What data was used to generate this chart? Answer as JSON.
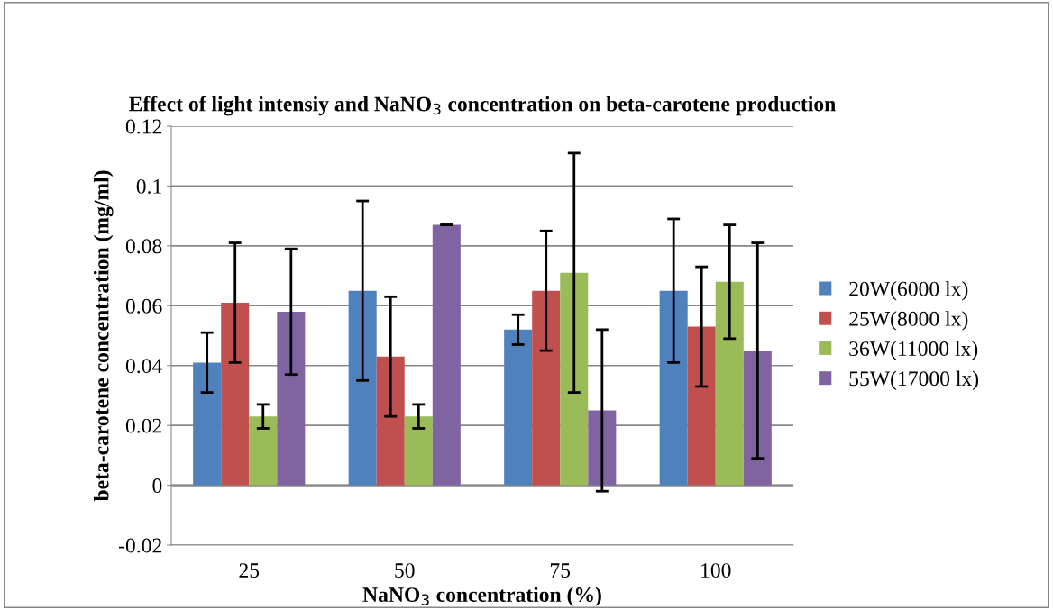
{
  "chart_data": {
    "type": "bar",
    "title": "Effect of light intensiy and NaNO$_{3}$ concentration on beta-carotene production",
    "xlabel": "NaNO$_{3}$ concentration (%)",
    "ylabel": "beta-carotene concentration (mg/ml)",
    "categories": [
      "25",
      "50",
      "75",
      "100"
    ],
    "series": [
      {
        "name": "20W(6000 lx)",
        "color": "#4f81bd",
        "values": [
          0.041,
          0.065,
          0.052,
          0.065
        ],
        "errors": [
          0.01,
          0.03,
          0.005,
          0.024
        ]
      },
      {
        "name": "25W(8000 lx)",
        "color": "#c0504d",
        "values": [
          0.061,
          0.043,
          0.065,
          0.053
        ],
        "errors": [
          0.02,
          0.02,
          0.02,
          0.02
        ]
      },
      {
        "name": "36W(11000 lx)",
        "color": "#9bbb59",
        "values": [
          0.023,
          0.023,
          0.071,
          0.068
        ],
        "errors": [
          0.004,
          0.004,
          0.04,
          0.019
        ]
      },
      {
        "name": "55W(17000 lx)",
        "color": "#8064a2",
        "values": [
          0.058,
          0.087,
          0.025,
          0.045
        ],
        "errors": [
          0.021,
          0.0,
          0.027,
          0.036
        ]
      }
    ],
    "ylim": [
      -0.02,
      0.12
    ],
    "yticks": [
      -0.02,
      0,
      0.02,
      0.04,
      0.06,
      0.08,
      0.1,
      0.12
    ],
    "grid": "y",
    "legend": "right"
  }
}
